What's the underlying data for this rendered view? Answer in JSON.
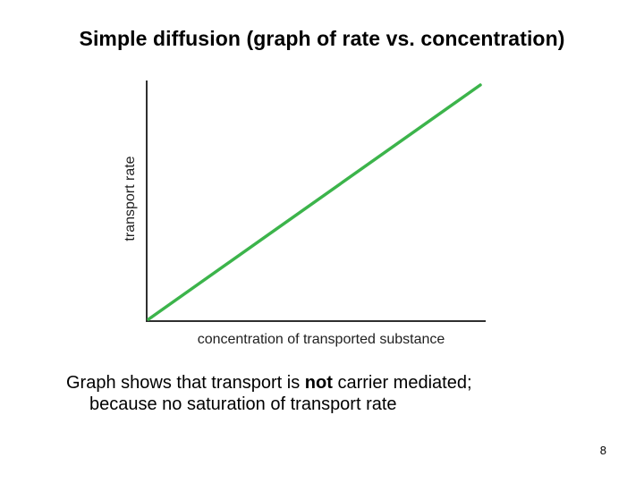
{
  "title": "Simple diffusion (graph of rate vs. concentration)",
  "chart_data": {
    "type": "line",
    "xlabel": "concentration of transported substance",
    "ylabel": "transport rate",
    "xlim": [
      0,
      1
    ],
    "ylim": [
      0,
      1
    ],
    "grid": false,
    "series": [
      {
        "color": "#3cb44b",
        "x": [
          0,
          1
        ],
        "y": [
          0,
          1
        ]
      }
    ]
  },
  "caption": {
    "part1": "Graph shows that transport is ",
    "bold": "not",
    "part2": " carrier mediated;",
    "line2": "because no saturation of transport rate"
  },
  "page_number": "8"
}
